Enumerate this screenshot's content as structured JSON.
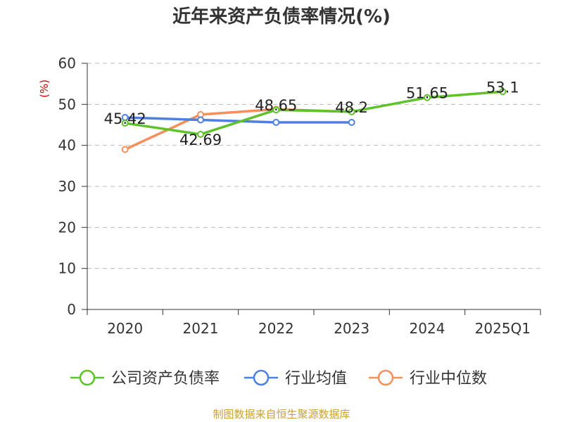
{
  "colors": {
    "company": "#5ec22b",
    "industry_avg": "#4f7fdf",
    "industry_median": "#f5905c",
    "axis": "#333333",
    "grid": "#bbbbbb",
    "unit": "#cc0000",
    "source": "#c9a032"
  },
  "source": "制图数据来自恒生聚源数据库",
  "chart_data": {
    "type": "line",
    "title": "近年来资产负债率情况(%)",
    "ylabel": "(%)",
    "xlabel": "",
    "categories": [
      "2020",
      "2021",
      "2022",
      "2023",
      "2024",
      "2025Q1"
    ],
    "ylim": [
      0,
      60
    ],
    "yticks": [
      0,
      10,
      20,
      30,
      40,
      50,
      60
    ],
    "grid": true,
    "legend_position": "bottom",
    "series": [
      {
        "key": "company",
        "name": "公司资产负债率",
        "values": [
          45.42,
          42.69,
          48.65,
          48.2,
          51.65,
          53.1
        ],
        "labels": [
          "45.42",
          "42.69",
          "48.65",
          "48.2",
          "51.65",
          "53.1"
        ]
      },
      {
        "key": "industry_avg",
        "name": "行业均值",
        "values": [
          46.8,
          46.2,
          45.6,
          45.6,
          null,
          null
        ]
      },
      {
        "key": "industry_median",
        "name": "行业中位数",
        "values": [
          39.0,
          47.5,
          48.8,
          48.2,
          null,
          null
        ]
      }
    ]
  }
}
